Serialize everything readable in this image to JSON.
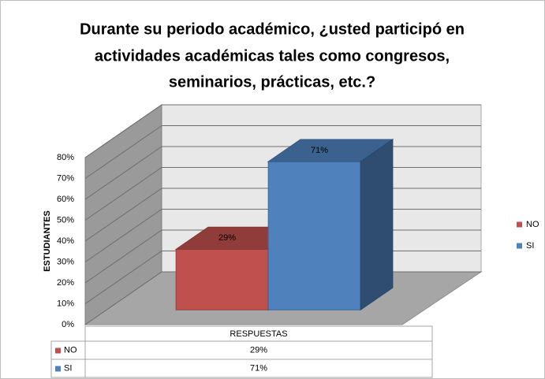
{
  "chart_data": {
    "type": "bar3d",
    "title": [
      "Durante su periodo académico, ¿usted participó en",
      "actividades académicas tales como congresos,",
      "seminarios, prácticas, etc.?"
    ],
    "y_label": "ESTUDIANTES",
    "categories": [
      "RESPUESTAS"
    ],
    "series": [
      {
        "name": "NO",
        "color": "#c0504d",
        "values": [
          29
        ],
        "value_labels": [
          "29%"
        ]
      },
      {
        "name": "SI",
        "color": "#4f81bd",
        "values": [
          71
        ],
        "value_labels": [
          "71%"
        ]
      }
    ],
    "ylim": [
      0,
      80
    ],
    "yticks": [
      {
        "value": 0,
        "label": "0%"
      },
      {
        "value": 10,
        "label": "10%"
      },
      {
        "value": 20,
        "label": "20%"
      },
      {
        "value": 30,
        "label": "30%"
      },
      {
        "value": 40,
        "label": "40%"
      },
      {
        "value": 50,
        "label": "50%"
      },
      {
        "value": 60,
        "label": "60%"
      },
      {
        "value": 70,
        "label": "70%"
      },
      {
        "value": 80,
        "label": "80%"
      }
    ],
    "grid": true,
    "legend": "right",
    "data_table": true
  }
}
